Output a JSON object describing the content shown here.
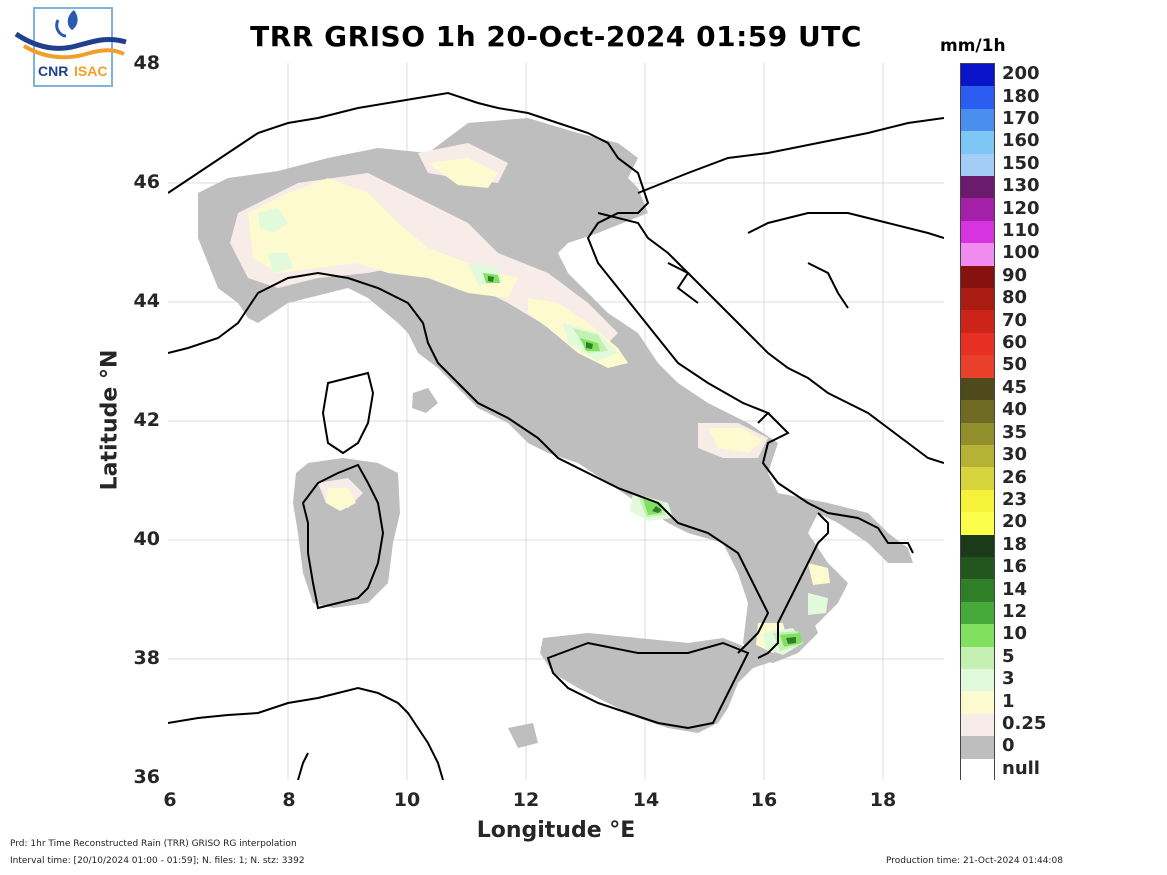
{
  "title": "TRR GRISO 1h 20-Oct-2024 01:59 UTC",
  "logo": {
    "text_left": "CNR",
    "text_right": "ISAC"
  },
  "xaxis": {
    "label": "Longitude °E",
    "ticks": [
      "6",
      "8",
      "10",
      "12",
      "14",
      "16",
      "18"
    ],
    "range": [
      6,
      19
    ]
  },
  "yaxis": {
    "label": "Latitude °N",
    "ticks": [
      "36",
      "38",
      "40",
      "42",
      "44",
      "46",
      "48"
    ],
    "range": [
      36,
      48
    ]
  },
  "colorbar": {
    "unit": "mm/1h",
    "classes": [
      {
        "label": "200",
        "color": "#0a14c8"
      },
      {
        "label": "180",
        "color": "#2b5ef0"
      },
      {
        "label": "170",
        "color": "#4a8ff0"
      },
      {
        "label": "160",
        "color": "#7ec6f6"
      },
      {
        "label": "150",
        "color": "#a4cdf6"
      },
      {
        "label": "130",
        "color": "#6b1b6e"
      },
      {
        "label": "120",
        "color": "#a320a8"
      },
      {
        "label": "110",
        "color": "#d634e0"
      },
      {
        "label": "100",
        "color": "#f08cf0"
      },
      {
        "label": "90",
        "color": "#861210"
      },
      {
        "label": "80",
        "color": "#a81c14"
      },
      {
        "label": "70",
        "color": "#cc2418"
      },
      {
        "label": "60",
        "color": "#e63024"
      },
      {
        "label": "50",
        "color": "#e8402a"
      },
      {
        "label": "45",
        "color": "#4f4a1c"
      },
      {
        "label": "40",
        "color": "#6e6a24"
      },
      {
        "label": "35",
        "color": "#918e2e"
      },
      {
        "label": "30",
        "color": "#b5b236"
      },
      {
        "label": "26",
        "color": "#d8d43e"
      },
      {
        "label": "23",
        "color": "#f6f23c"
      },
      {
        "label": "20",
        "color": "#fbff4a"
      },
      {
        "label": "18",
        "color": "#1a3a1a"
      },
      {
        "label": "16",
        "color": "#23561f"
      },
      {
        "label": "14",
        "color": "#2f7e28"
      },
      {
        "label": "12",
        "color": "#45aa3a"
      },
      {
        "label": "10",
        "color": "#82e060"
      },
      {
        "label": "5",
        "color": "#c4f0b4"
      },
      {
        "label": "3",
        "color": "#e2fadc"
      },
      {
        "label": "1",
        "color": "#fefad0"
      },
      {
        "label": "0.25",
        "color": "#f8ece8"
      },
      {
        "label": "0",
        "color": "#bebebe"
      },
      {
        "label": "null",
        "color": "#ffffff"
      }
    ]
  },
  "footer": {
    "product": "Prd: 1hr Time Reconstructed Rain (TRR) GRISO RG interpolation",
    "interval": "Interval time: [20/10/2024 01:00 - 01:59]; N. files: 1; N. stz: 3392",
    "production": "Production time: 21-Oct-2024 01:44:08"
  }
}
